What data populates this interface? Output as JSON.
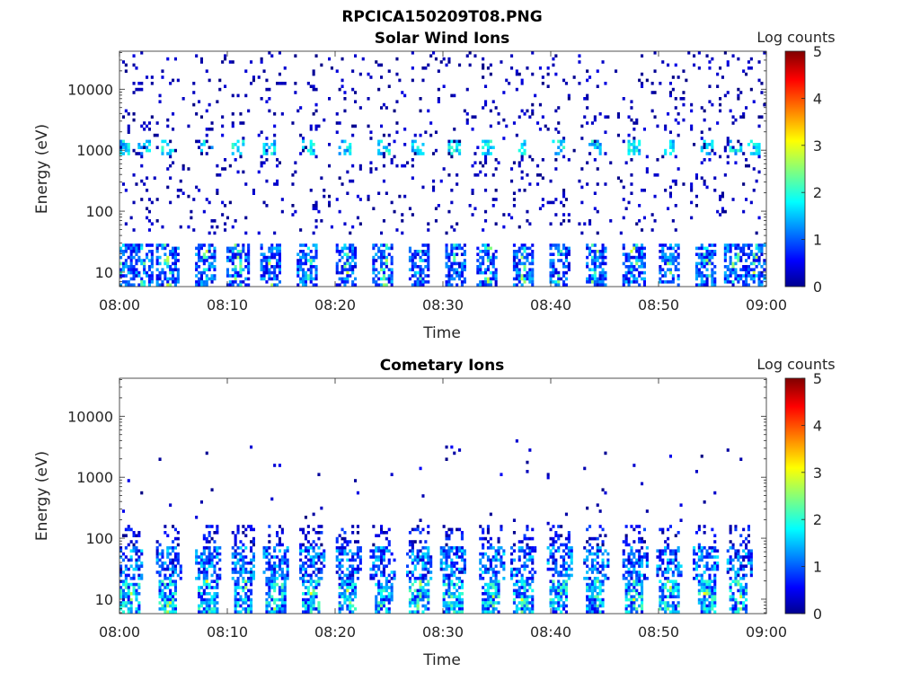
{
  "figure_title": "RPCICA150209T08.PNG",
  "chart_data": [
    {
      "type": "heatmap",
      "title": "Solar Wind Ions",
      "xlabel": "Time",
      "ylabel": "Energy (eV)",
      "x_range": [
        "08:00",
        "09:00"
      ],
      "x_ticks": [
        "08:00",
        "08:10",
        "08:20",
        "08:30",
        "08:40",
        "08:50",
        "09:00"
      ],
      "y_scale": "log",
      "y_range": [
        5.8,
        42000
      ],
      "y_ticks": [
        {
          "value": 10,
          "label": "10"
        },
        {
          "value": 100,
          "label": "100"
        },
        {
          "value": 1000,
          "label": "1000"
        },
        {
          "value": 10000,
          "label": "10000"
        }
      ],
      "colorbar": {
        "label": "Log counts",
        "range": [
          0,
          5
        ],
        "ticks": [
          "0",
          "1",
          "2",
          "3",
          "4",
          "5"
        ],
        "colormap": "jet"
      },
      "grid": false,
      "bursts_minutes": [
        0.3,
        2.2,
        4.5,
        8.0,
        11.0,
        14.0,
        17.5,
        21.0,
        24.5,
        27.8,
        31.2,
        34.2,
        37.5,
        40.8,
        44.2,
        47.8,
        51.0,
        54.5,
        57.2,
        59.0
      ],
      "features": [
        {
          "energy_band_eV": [
            6,
            30
          ],
          "description_level": 1.2
        },
        {
          "energy_band_eV": [
            800,
            1400
          ],
          "description_level": 1.8
        },
        {
          "energy_band_eV": [
            50,
            40000
          ],
          "description_level": 0.2
        }
      ]
    },
    {
      "type": "heatmap",
      "title": "Cometary Ions",
      "xlabel": "Time",
      "ylabel": "Energy (eV)",
      "x_range": [
        "08:00",
        "09:00"
      ],
      "x_ticks": [
        "08:00",
        "08:10",
        "08:20",
        "08:30",
        "08:40",
        "08:50",
        "09:00"
      ],
      "y_scale": "log",
      "y_range": [
        5.8,
        42000
      ],
      "y_ticks": [
        {
          "value": 10,
          "label": "10"
        },
        {
          "value": 100,
          "label": "100"
        },
        {
          "value": 1000,
          "label": "1000"
        },
        {
          "value": 10000,
          "label": "10000"
        }
      ],
      "colorbar": {
        "label": "Log counts",
        "range": [
          0,
          5
        ],
        "ticks": [
          "0",
          "1",
          "2",
          "3",
          "4",
          "5"
        ],
        "colormap": "jet"
      },
      "grid": false,
      "bursts_minutes": [
        1.0,
        4.5,
        8.2,
        11.5,
        14.5,
        17.8,
        21.2,
        24.5,
        27.8,
        31.0,
        34.5,
        37.5,
        40.8,
        44.2,
        47.8,
        51.0,
        54.5,
        57.5
      ],
      "features": [
        {
          "energy_band_eV": [
            6,
            150
          ],
          "description_level": 1.8
        },
        {
          "energy_band_eV": [
            150,
            4000
          ],
          "description_level": 0.3
        }
      ]
    }
  ]
}
